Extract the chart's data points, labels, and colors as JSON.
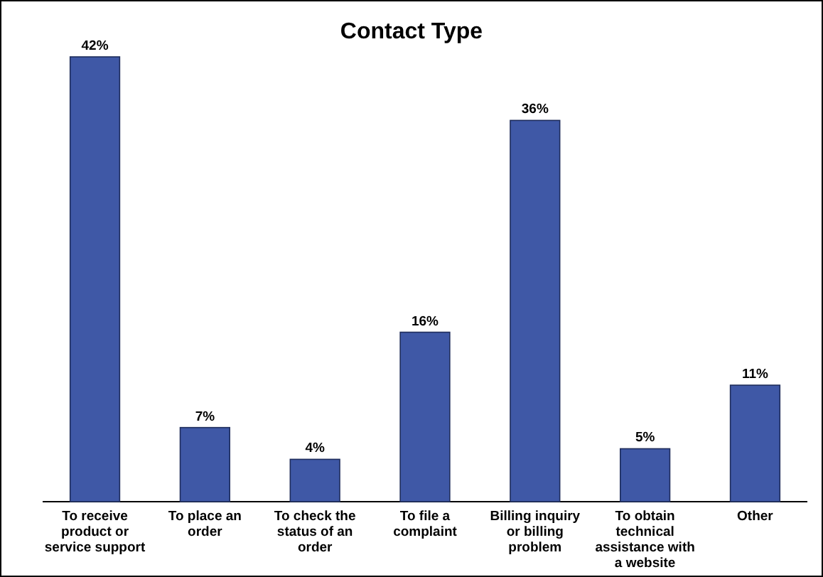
{
  "chart_data": {
    "type": "bar",
    "title": "Contact Type",
    "categories": [
      "To receive product or service support",
      "To place an order",
      "To check the status of an order",
      "To file a complaint",
      "Billing inquiry or billing problem",
      "To obtain technical assistance with a website",
      "Other"
    ],
    "values": [
      42,
      7,
      4,
      16,
      36,
      5,
      11
    ],
    "color": "#3f58a6",
    "value_labels": [
      "42%",
      "7%",
      "4%",
      "16%",
      "36%",
      "5%",
      "11%"
    ]
  }
}
